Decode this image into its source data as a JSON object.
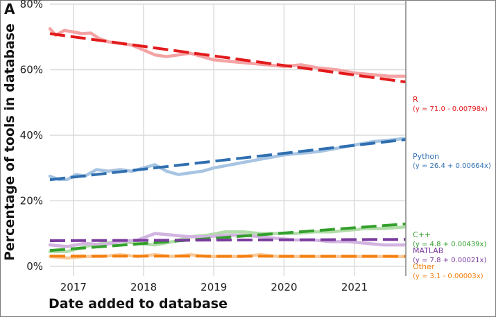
{
  "panel_label": "A",
  "chart_data": {
    "type": "line",
    "xlabel": "Date added to database",
    "ylabel": "Percentage of tools in database",
    "x_ticks": [
      "2017",
      "2018",
      "2019",
      "2020",
      "2021"
    ],
    "y_ticks": [
      "0%",
      "20%",
      "40%",
      "60%",
      "80%"
    ],
    "xlim": [
      "2016-09-01",
      "2021-09-25"
    ],
    "ylim": [
      -3,
      80
    ],
    "grid": true,
    "legend": "right-side labels",
    "series": [
      {
        "name": "R",
        "equation": "(y = 71.0 -  0.00798x)",
        "color": "#e31a1c",
        "raw_color": "#f4a3a4",
        "trend": {
          "intercept": 71.0,
          "slope_per_day": -0.00798
        },
        "raw": [
          [
            "2016-09-01",
            72.5
          ],
          [
            "2016-10-01",
            70.5
          ],
          [
            "2016-11-15",
            72.0
          ],
          [
            "2017-01-01",
            71.5
          ],
          [
            "2017-02-15",
            71.0
          ],
          [
            "2017-04-01",
            71.2
          ],
          [
            "2017-05-15",
            69.5
          ],
          [
            "2017-07-01",
            68.5
          ],
          [
            "2017-09-01",
            68.0
          ],
          [
            "2017-11-01",
            67.5
          ],
          [
            "2018-01-01",
            66.0
          ],
          [
            "2018-03-01",
            64.5
          ],
          [
            "2018-05-01",
            64.0
          ],
          [
            "2018-07-01",
            64.5
          ],
          [
            "2018-09-01",
            65.0
          ],
          [
            "2018-11-01",
            64.0
          ],
          [
            "2019-01-01",
            63.0
          ],
          [
            "2019-04-01",
            62.5
          ],
          [
            "2019-07-01",
            62.0
          ],
          [
            "2019-10-01",
            61.5
          ],
          [
            "2020-01-01",
            61.0
          ],
          [
            "2020-04-01",
            61.5
          ],
          [
            "2020-07-01",
            60.5
          ],
          [
            "2020-10-01",
            60.0
          ],
          [
            "2021-01-01",
            59.0
          ],
          [
            "2021-04-01",
            58.5
          ],
          [
            "2021-07-01",
            58.0
          ],
          [
            "2021-09-20",
            58.0
          ]
        ]
      },
      {
        "name": "Python",
        "equation": "(y = 26.4 + 0.00664x)",
        "color": "#2f6fb0",
        "raw_color": "#a7c4e2",
        "trend": {
          "intercept": 26.4,
          "slope_per_day": 0.00664
        },
        "raw": [
          [
            "2016-09-01",
            27.5
          ],
          [
            "2016-10-15",
            26.5
          ],
          [
            "2016-12-01",
            26.5
          ],
          [
            "2017-01-15",
            28.0
          ],
          [
            "2017-03-01",
            27.5
          ],
          [
            "2017-05-01",
            29.5
          ],
          [
            "2017-07-01",
            29.0
          ],
          [
            "2017-09-01",
            29.5
          ],
          [
            "2017-11-01",
            29.0
          ],
          [
            "2018-01-01",
            30.0
          ],
          [
            "2018-03-01",
            31.0
          ],
          [
            "2018-05-01",
            29.0
          ],
          [
            "2018-07-01",
            28.0
          ],
          [
            "2018-09-01",
            28.5
          ],
          [
            "2018-11-01",
            29.0
          ],
          [
            "2019-01-01",
            30.0
          ],
          [
            "2019-04-01",
            31.0
          ],
          [
            "2019-07-01",
            32.0
          ],
          [
            "2019-10-01",
            33.0
          ],
          [
            "2020-01-01",
            34.0
          ],
          [
            "2020-04-01",
            34.5
          ],
          [
            "2020-07-01",
            35.0
          ],
          [
            "2020-10-01",
            36.0
          ],
          [
            "2021-01-01",
            37.0
          ],
          [
            "2021-04-01",
            38.0
          ],
          [
            "2021-07-01",
            38.5
          ],
          [
            "2021-09-20",
            39.0
          ]
        ]
      },
      {
        "name": "C++",
        "equation": "(y = 4.8 + 0.00439x)",
        "color": "#33a02c",
        "raw_color": "#b2dca9",
        "trend": {
          "intercept": 4.8,
          "slope_per_day": 0.00439
        },
        "raw": [
          [
            "2016-09-01",
            4.5
          ],
          [
            "2016-12-01",
            4.5
          ],
          [
            "2017-03-01",
            6.0
          ],
          [
            "2017-06-01",
            7.0
          ],
          [
            "2017-09-01",
            7.5
          ],
          [
            "2017-12-01",
            7.0
          ],
          [
            "2018-03-01",
            6.5
          ],
          [
            "2018-06-01",
            7.5
          ],
          [
            "2018-09-01",
            9.0
          ],
          [
            "2018-12-01",
            9.5
          ],
          [
            "2019-03-01",
            10.5
          ],
          [
            "2019-06-01",
            10.5
          ],
          [
            "2019-09-01",
            10.0
          ],
          [
            "2019-12-01",
            10.0
          ],
          [
            "2020-03-01",
            10.0
          ],
          [
            "2020-06-01",
            10.5
          ],
          [
            "2020-09-01",
            10.5
          ],
          [
            "2020-12-01",
            11.0
          ],
          [
            "2021-03-01",
            11.5
          ],
          [
            "2021-06-01",
            11.5
          ],
          [
            "2021-09-20",
            12.0
          ]
        ]
      },
      {
        "name": "MATLAB",
        "equation": "(y = 7.8 + 0.00021x)",
        "color": "#7b3c9e",
        "raw_color": "#d2b4e0",
        "trend": {
          "intercept": 7.8,
          "slope_per_day": 0.00021
        },
        "raw": [
          [
            "2016-09-01",
            6.5
          ],
          [
            "2016-12-01",
            6.0
          ],
          [
            "2017-03-01",
            7.0
          ],
          [
            "2017-06-01",
            6.5
          ],
          [
            "2017-09-01",
            7.5
          ],
          [
            "2017-12-01",
            8.0
          ],
          [
            "2018-03-01",
            10.0
          ],
          [
            "2018-06-01",
            9.5
          ],
          [
            "2018-09-01",
            9.0
          ],
          [
            "2018-12-01",
            9.0
          ],
          [
            "2019-03-01",
            9.5
          ],
          [
            "2019-06-01",
            9.5
          ],
          [
            "2019-09-01",
            9.0
          ],
          [
            "2019-12-01",
            8.5
          ],
          [
            "2020-03-01",
            8.0
          ],
          [
            "2020-06-01",
            8.0
          ],
          [
            "2020-09-01",
            7.5
          ],
          [
            "2020-12-01",
            7.5
          ],
          [
            "2021-03-01",
            7.0
          ],
          [
            "2021-06-01",
            6.5
          ],
          [
            "2021-09-20",
            6.5
          ]
        ]
      },
      {
        "name": "Other",
        "equation": "(y = 3.1 -  0.00003x)",
        "color": "#f57f0f",
        "raw_color": "#f9c999",
        "trend": {
          "intercept": 3.1,
          "slope_per_day": -3e-05
        },
        "raw": [
          [
            "2016-09-01",
            3.0
          ],
          [
            "2016-12-01",
            2.5
          ],
          [
            "2017-03-01",
            3.0
          ],
          [
            "2017-06-01",
            3.0
          ],
          [
            "2017-09-01",
            3.5
          ],
          [
            "2017-12-01",
            3.0
          ],
          [
            "2018-03-01",
            3.5
          ],
          [
            "2018-06-01",
            3.0
          ],
          [
            "2018-09-01",
            3.5
          ],
          [
            "2018-12-01",
            3.0
          ],
          [
            "2019-03-01",
            3.0
          ],
          [
            "2019-06-01",
            3.0
          ],
          [
            "2019-09-01",
            3.5
          ],
          [
            "2019-12-01",
            3.0
          ],
          [
            "2020-03-01",
            3.0
          ],
          [
            "2020-06-01",
            3.0
          ],
          [
            "2020-09-01",
            3.0
          ],
          [
            "2020-12-01",
            3.0
          ],
          [
            "2021-03-01",
            3.0
          ],
          [
            "2021-06-01",
            3.0
          ],
          [
            "2021-09-20",
            3.0
          ]
        ]
      }
    ]
  }
}
